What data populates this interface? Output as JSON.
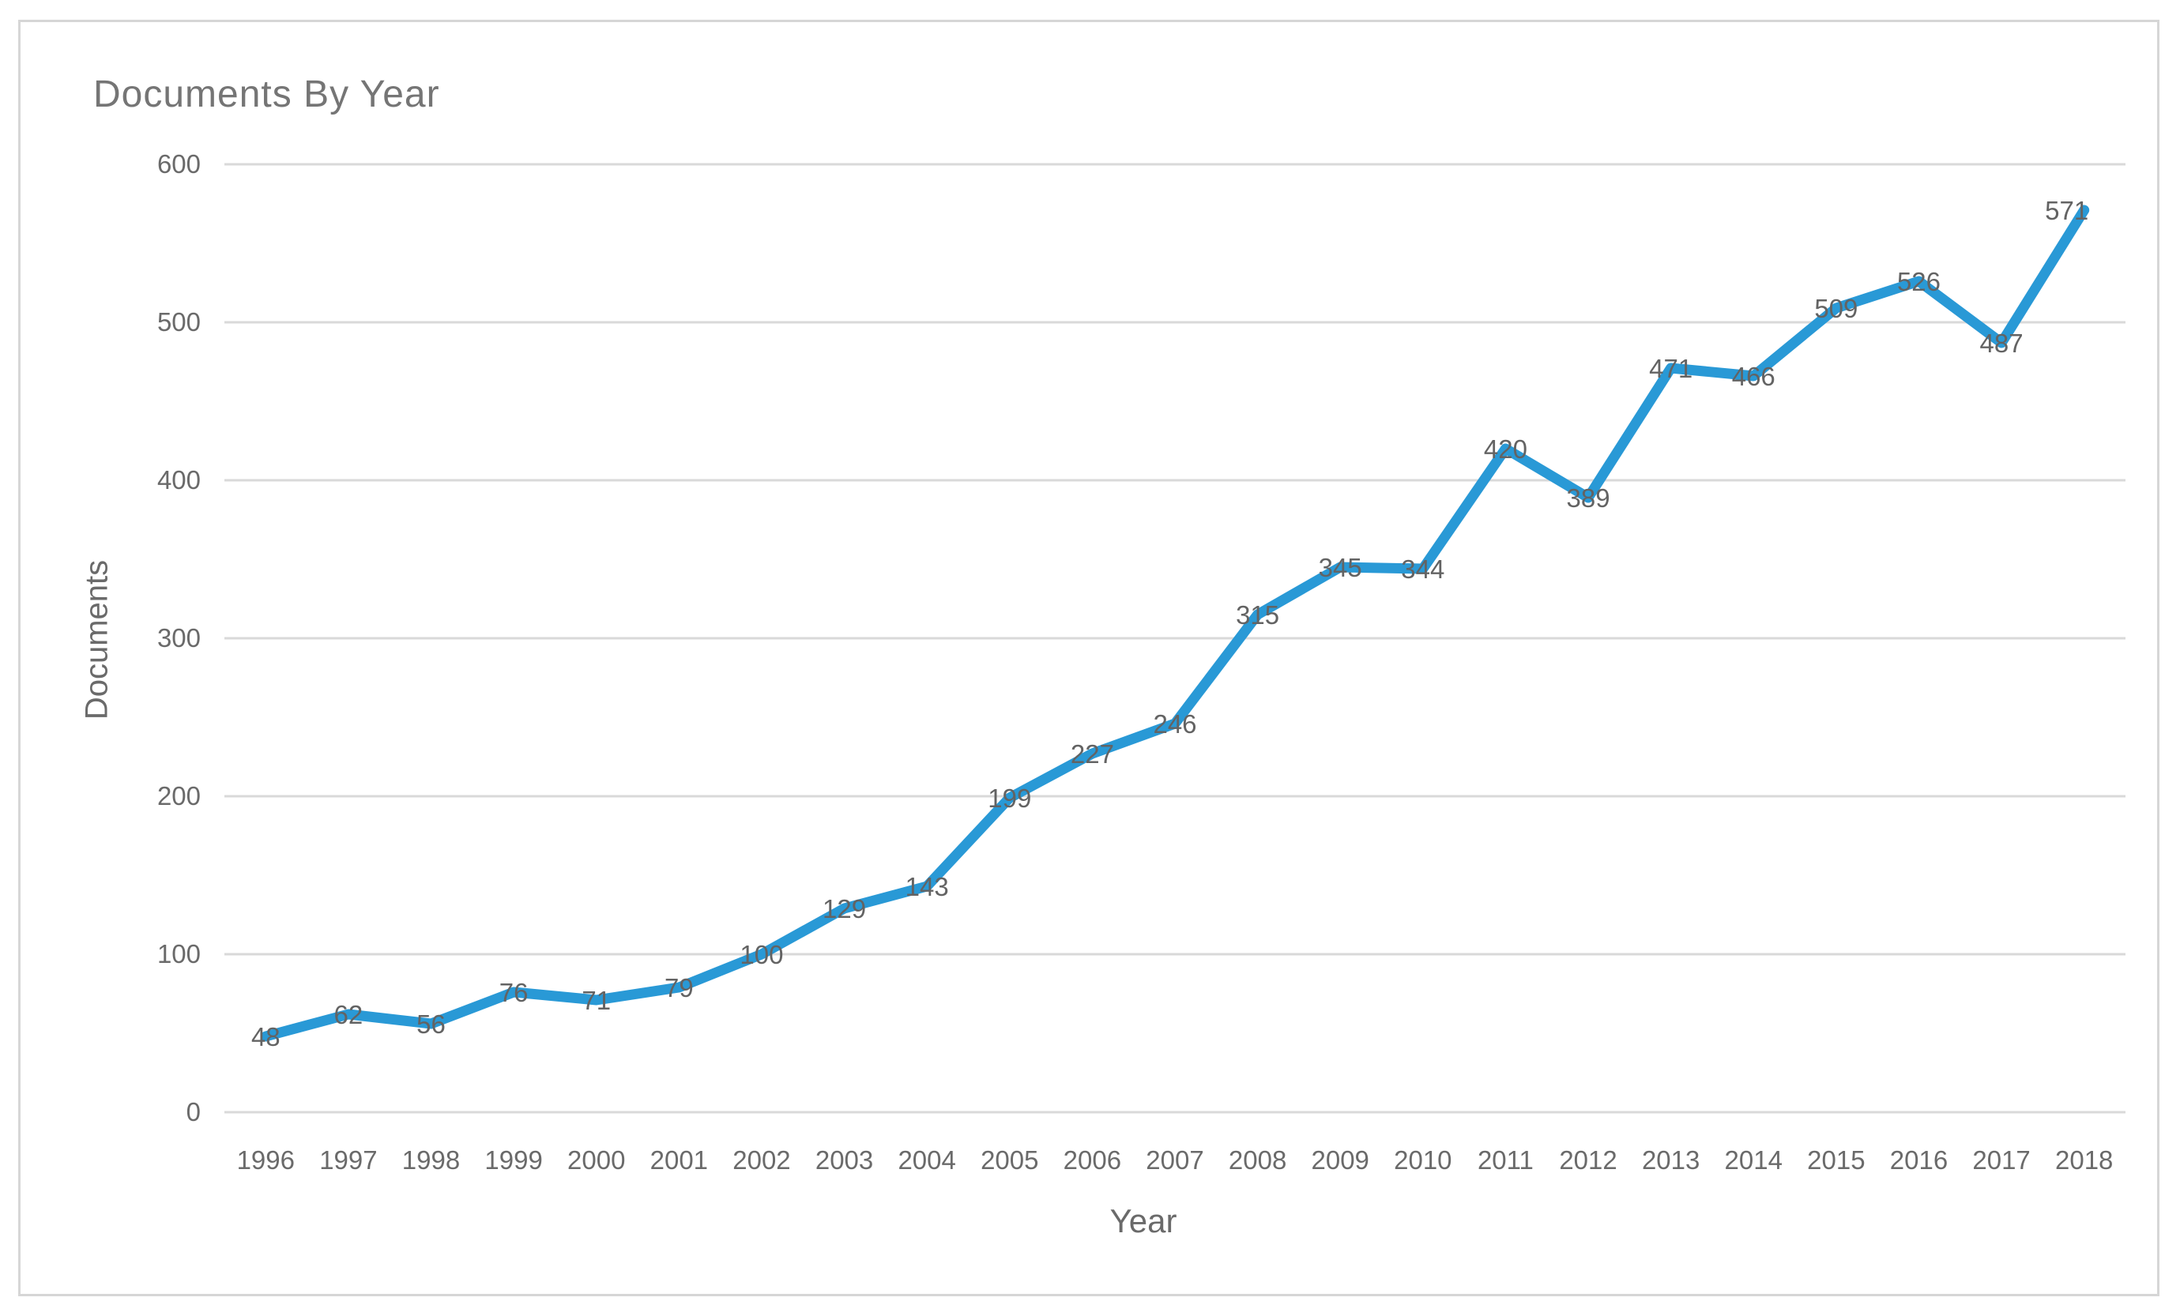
{
  "chart_data": {
    "type": "line",
    "title": "Documents By Year",
    "xlabel": "Year",
    "ylabel": "Documents",
    "categories": [
      "1996",
      "1997",
      "1998",
      "1999",
      "2000",
      "2001",
      "2002",
      "2003",
      "2004",
      "2005",
      "2006",
      "2007",
      "2008",
      "2009",
      "2010",
      "2011",
      "2012",
      "2013",
      "2014",
      "2015",
      "2016",
      "2017",
      "2018"
    ],
    "values": [
      48,
      62,
      56,
      76,
      71,
      79,
      100,
      129,
      143,
      199,
      227,
      246,
      315,
      345,
      344,
      420,
      389,
      471,
      466,
      509,
      526,
      487,
      571
    ],
    "ylim": [
      0,
      600
    ],
    "yticks": [
      0,
      100,
      200,
      300,
      400,
      500,
      600
    ],
    "grid": true,
    "data_labels": true,
    "legend": "none",
    "line_color": "#2999D6",
    "grid_color": "#d9d9d9",
    "text_color": "#6a6a6a",
    "title_color": "#757575",
    "frame_color": "#d6d6d6"
  }
}
